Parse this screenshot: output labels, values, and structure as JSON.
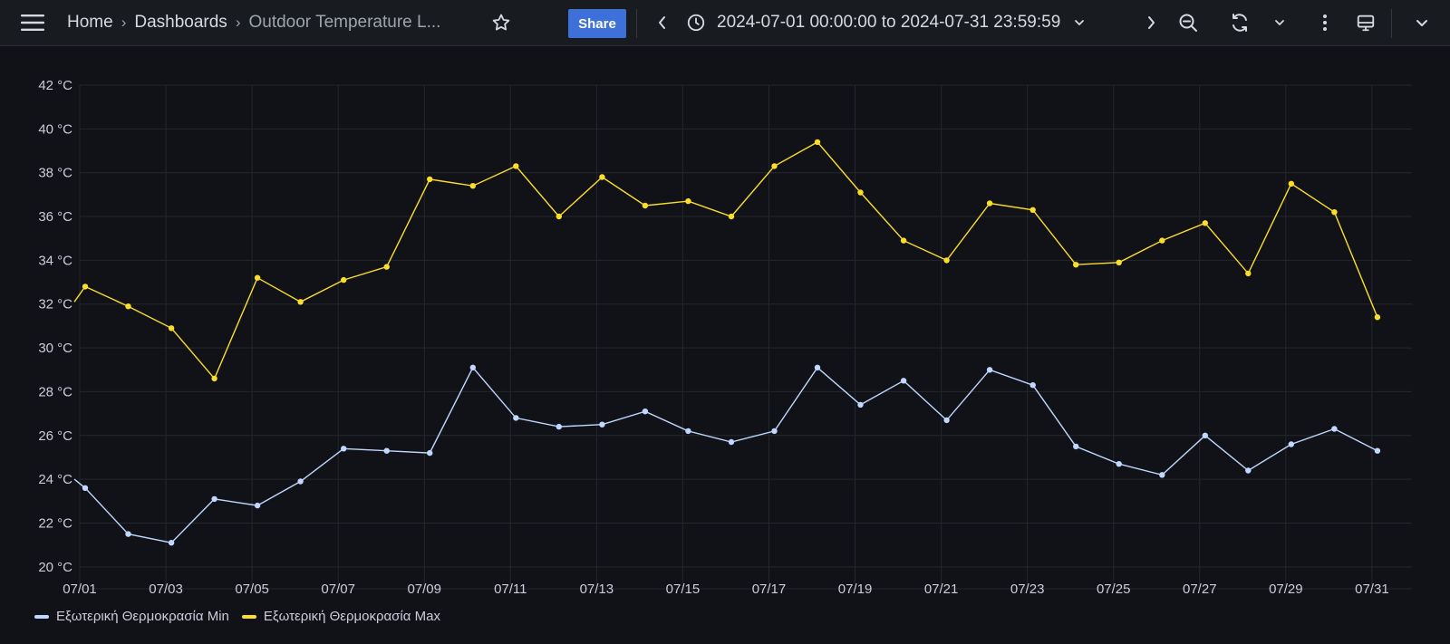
{
  "topbar": {
    "breadcrumb": {
      "home": "Home",
      "dashboards": "Dashboards",
      "current": "Outdoor Temperature L..."
    },
    "share_label": "Share",
    "time_range": "2024-07-01 00:00:00 to 2024-07-31 23:59:59",
    "icons": [
      "menu-icon",
      "star-icon",
      "chevron-left-icon",
      "clock-icon",
      "chevron-down-icon",
      "chevron-right-icon",
      "zoom-out-icon",
      "refresh-icon",
      "chevron-down-icon",
      "more-vertical-icon",
      "kiosk-icon",
      "chevron-down-icon"
    ]
  },
  "colors": {
    "background": "#111217",
    "topbar": "#181b1f",
    "grid": "#24272d",
    "min_series": "#c0d8ff",
    "max_series": "#fade2a",
    "share": "#3d71d9"
  },
  "chart_data": {
    "type": "line",
    "x": [
      "07/01",
      "07/02",
      "07/03",
      "07/04",
      "07/05",
      "07/06",
      "07/07",
      "07/08",
      "07/09",
      "07/10",
      "07/11",
      "07/12",
      "07/13",
      "07/14",
      "07/15",
      "07/16",
      "07/17",
      "07/18",
      "07/19",
      "07/20",
      "07/21",
      "07/22",
      "07/23",
      "07/24",
      "07/25",
      "07/26",
      "07/27",
      "07/28",
      "07/29",
      "07/30",
      "07/31"
    ],
    "x_tick_labels": [
      "07/01",
      "07/03",
      "07/05",
      "07/07",
      "07/09",
      "07/11",
      "07/13",
      "07/15",
      "07/17",
      "07/19",
      "07/21",
      "07/23",
      "07/25",
      "07/27",
      "07/29",
      "07/31"
    ],
    "y_tick_labels": [
      "42 °C",
      "40 °C",
      "38 °C",
      "36 °C",
      "34 °C",
      "32 °C",
      "30 °C",
      "28 °C",
      "26 °C",
      "24 °C",
      "22 °C",
      "20 °C"
    ],
    "ylim": [
      19,
      42
    ],
    "y_ticks": [
      42,
      40,
      38,
      36,
      34,
      32,
      30,
      28,
      26,
      24,
      22,
      20
    ],
    "unit": "°C",
    "grid": true,
    "legend_position": "bottom-left",
    "series": [
      {
        "name": "Εξωτερική Θερμοκρασία Min",
        "color": "#c0d8ff",
        "start_value": 24.0,
        "values": [
          23.6,
          21.5,
          21.1,
          23.1,
          22.8,
          23.9,
          25.4,
          25.3,
          25.2,
          29.1,
          26.8,
          26.4,
          26.5,
          27.1,
          26.2,
          25.7,
          26.2,
          29.1,
          27.4,
          28.5,
          26.7,
          29.0,
          28.3,
          25.5,
          24.7,
          24.2,
          26.0,
          24.4,
          25.6,
          26.3,
          25.3
        ]
      },
      {
        "name": "Εξωτερική Θερμοκρασία Max",
        "color": "#fade2a",
        "start_value": 32.1,
        "values": [
          32.8,
          31.9,
          30.9,
          28.6,
          33.2,
          32.1,
          33.1,
          33.7,
          37.7,
          37.4,
          38.3,
          36.0,
          37.8,
          36.5,
          36.7,
          36.0,
          38.3,
          39.4,
          37.1,
          34.9,
          34.0,
          36.6,
          36.3,
          33.8,
          33.9,
          34.9,
          35.7,
          33.4,
          37.5,
          36.2,
          31.4
        ]
      }
    ]
  }
}
